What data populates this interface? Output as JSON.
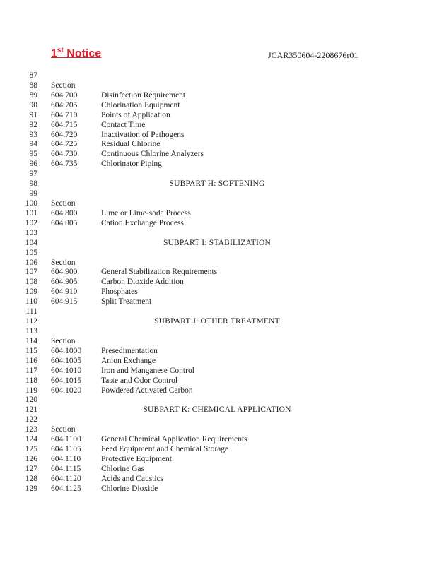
{
  "header": {
    "notice_main": "1",
    "notice_sup": "st",
    "notice_rest": " Notice",
    "doc_id": "JCAR350604-2208676r01",
    "notice_color": "#e0202a"
  },
  "lines": [
    {
      "n": "87"
    },
    {
      "n": "88",
      "sec": "Section"
    },
    {
      "n": "89",
      "sec": "604.700",
      "title": "Disinfection Requirement"
    },
    {
      "n": "90",
      "sec": "604.705",
      "title": "Chlorination Equipment"
    },
    {
      "n": "91",
      "sec": "604.710",
      "title": "Points of Application"
    },
    {
      "n": "92",
      "sec": "604.715",
      "title": "Contact Time"
    },
    {
      "n": "93",
      "sec": "604.720",
      "title": "Inactivation of Pathogens"
    },
    {
      "n": "94",
      "sec": "604.725",
      "title": "Residual Chlorine"
    },
    {
      "n": "95",
      "sec": "604.730",
      "title": "Continuous Chlorine Analyzers"
    },
    {
      "n": "96",
      "sec": "604.735",
      "title": "Chlorinator Piping"
    },
    {
      "n": "97"
    },
    {
      "n": "98",
      "heading": "SUBPART H:  SOFTENING"
    },
    {
      "n": "99"
    },
    {
      "n": "100",
      "sec": "Section"
    },
    {
      "n": "101",
      "sec": "604.800",
      "title": "Lime or Lime-soda Process"
    },
    {
      "n": "102",
      "sec": "604.805",
      "title": "Cation Exchange Process"
    },
    {
      "n": "103"
    },
    {
      "n": "104",
      "heading": "SUBPART I:  STABILIZATION"
    },
    {
      "n": "105"
    },
    {
      "n": "106",
      "sec": "Section"
    },
    {
      "n": "107",
      "sec": "604.900",
      "title": "General Stabilization Requirements"
    },
    {
      "n": "108",
      "sec": "604.905",
      "title": "Carbon Dioxide Addition"
    },
    {
      "n": "109",
      "sec": "604.910",
      "title": "Phosphates"
    },
    {
      "n": "110",
      "sec": "604.915",
      "title": "Split Treatment"
    },
    {
      "n": "111"
    },
    {
      "n": "112",
      "heading": "SUBPART J:  OTHER TREATMENT"
    },
    {
      "n": "113"
    },
    {
      "n": "114",
      "sec": "Section"
    },
    {
      "n": "115",
      "sec": "604.1000",
      "title": "Presedimentation"
    },
    {
      "n": "116",
      "sec": "604.1005",
      "title": "Anion Exchange"
    },
    {
      "n": "117",
      "sec": "604.1010",
      "title": "Iron and Manganese Control"
    },
    {
      "n": "118",
      "sec": "604.1015",
      "title": "Taste and Odor Control"
    },
    {
      "n": "119",
      "sec": "604.1020",
      "title": "Powdered Activated Carbon"
    },
    {
      "n": "120"
    },
    {
      "n": "121",
      "heading": "SUBPART K:  CHEMICAL APPLICATION"
    },
    {
      "n": "122"
    },
    {
      "n": "123",
      "sec": "Section"
    },
    {
      "n": "124",
      "sec": "604.1100",
      "title": "General Chemical Application Requirements"
    },
    {
      "n": "125",
      "sec": "604.1105",
      "title": "Feed Equipment and Chemical Storage"
    },
    {
      "n": "126",
      "sec": "604.1110",
      "title": "Protective Equipment"
    },
    {
      "n": "127",
      "sec": "604.1115",
      "title": "Chlorine Gas"
    },
    {
      "n": "128",
      "sec": "604.1120",
      "title": "Acids and Caustics"
    },
    {
      "n": "129",
      "sec": "604.1125",
      "title": "Chlorine Dioxide"
    }
  ]
}
